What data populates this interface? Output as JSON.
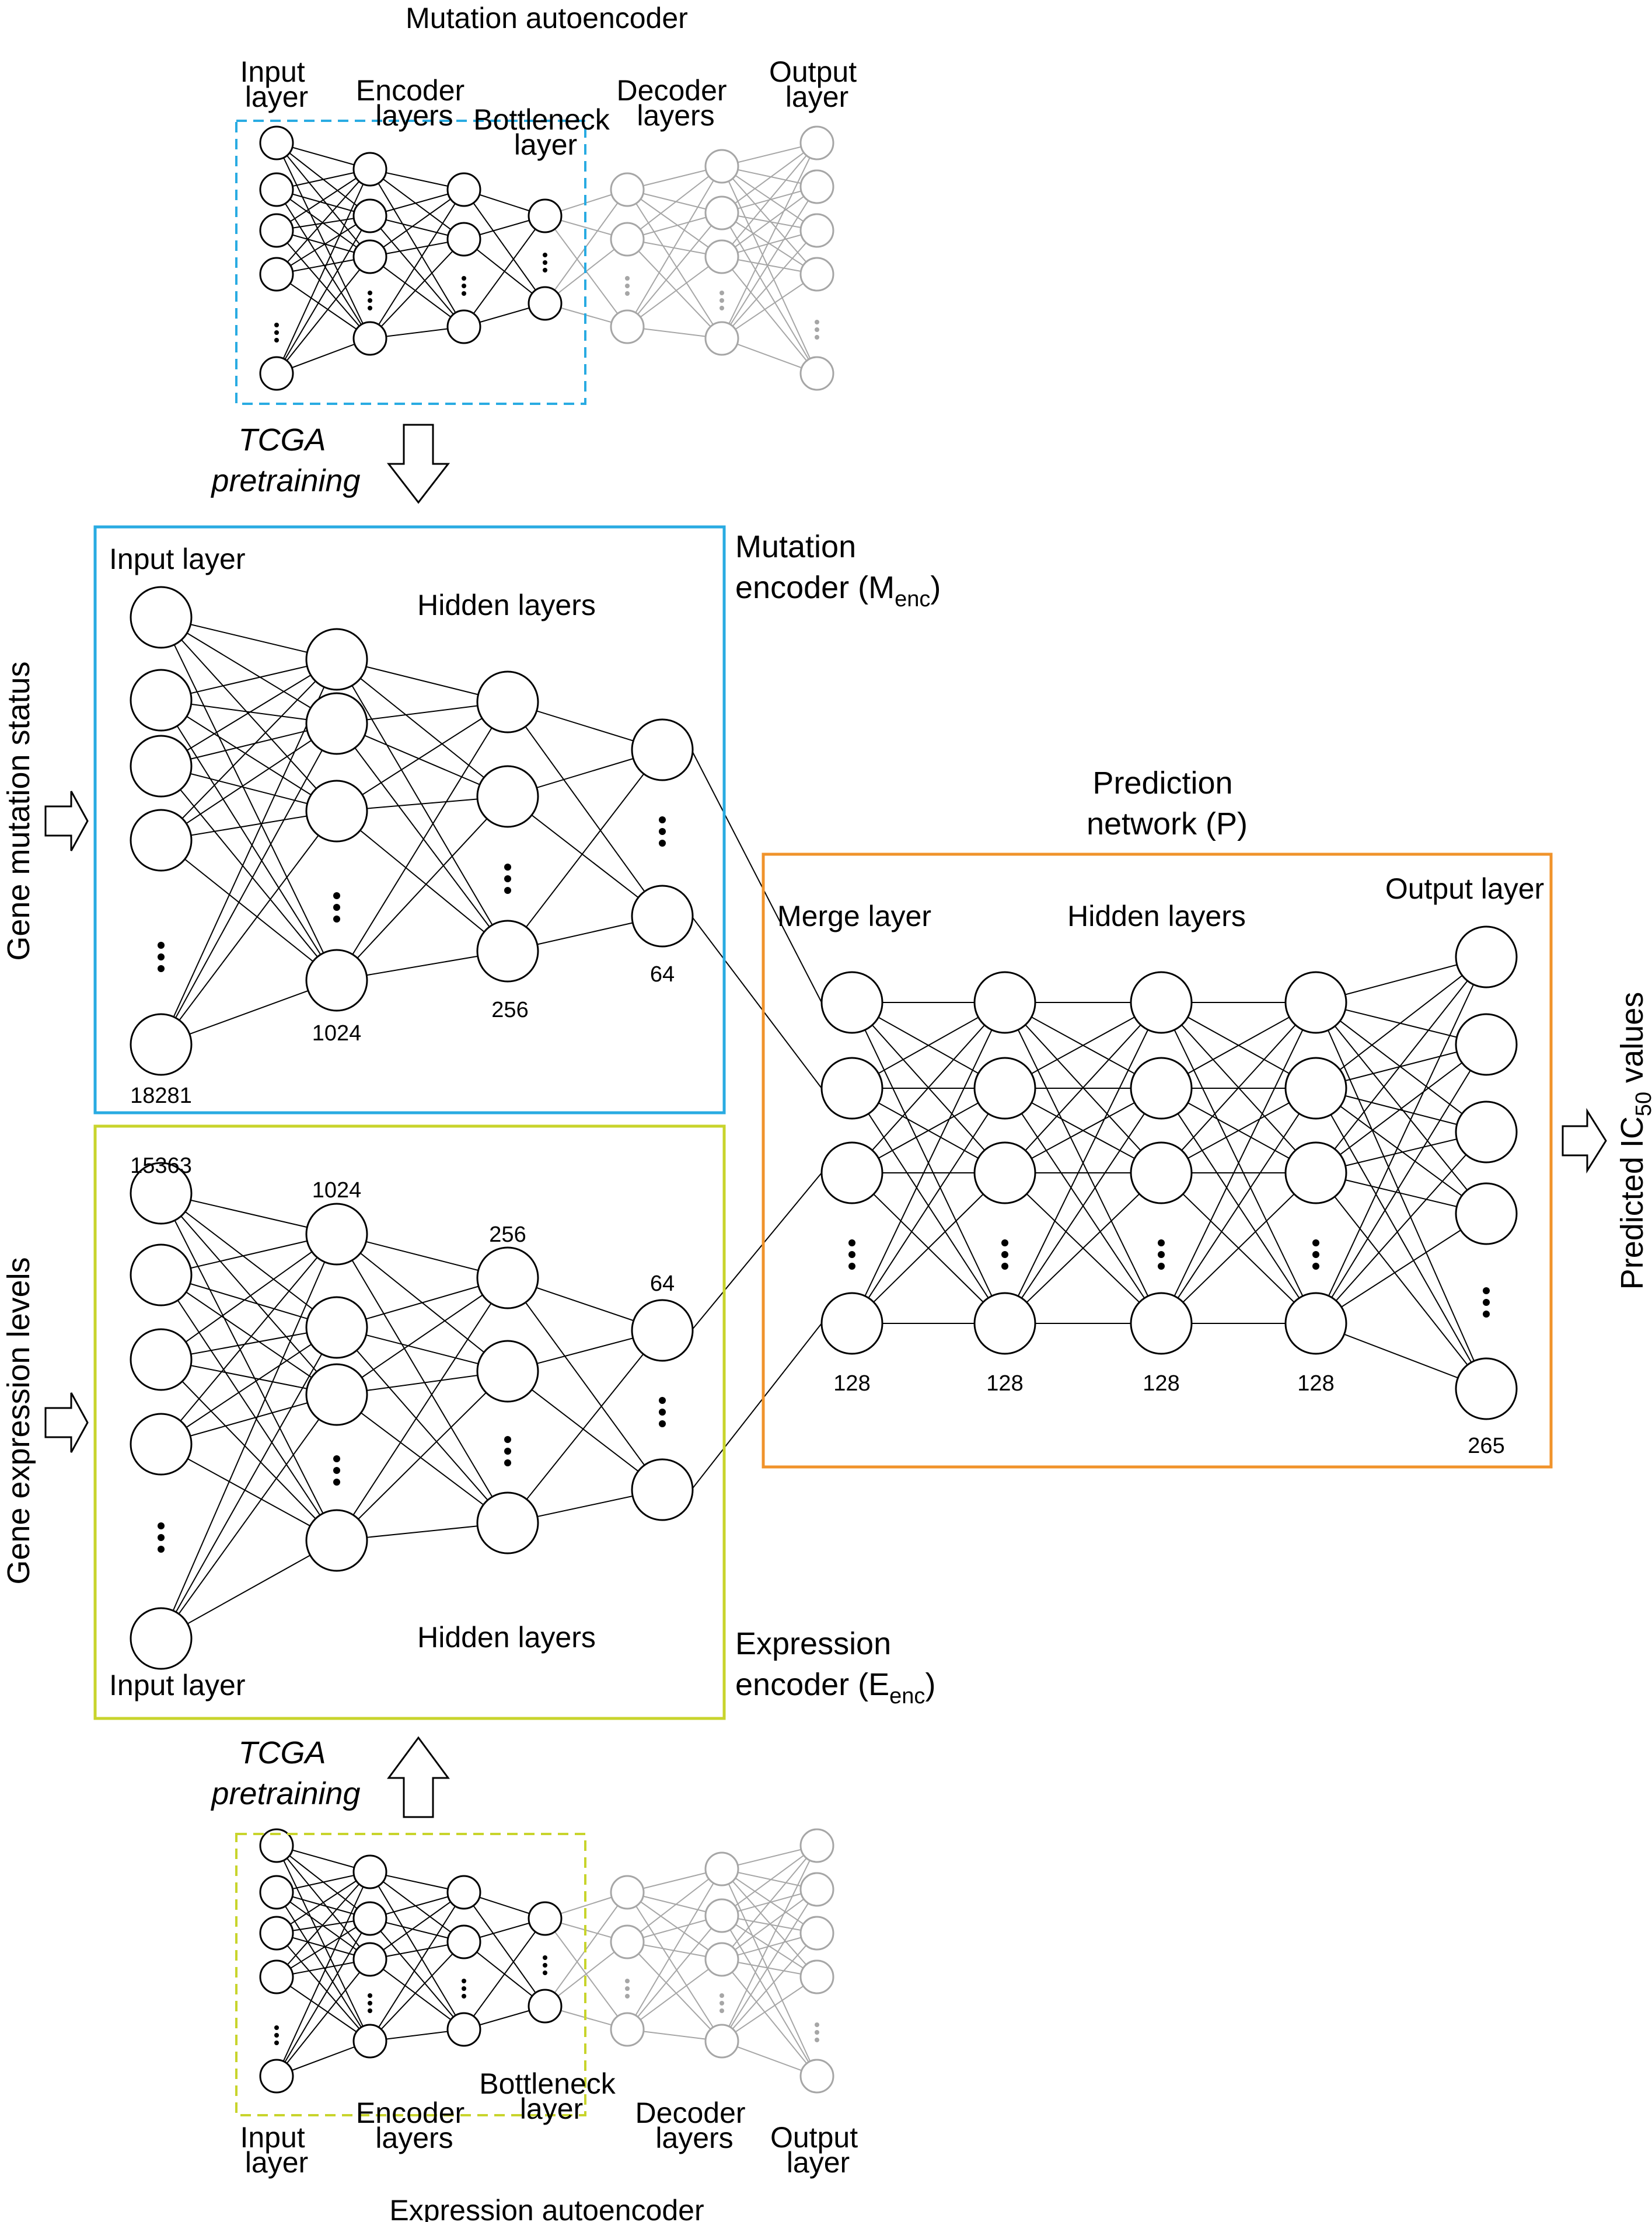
{
  "mutation_autoencoder": {
    "title": "Mutation autoencoder",
    "input_layer": [
      "Input",
      "layer"
    ],
    "encoder_layers": [
      "Encoder",
      "layers"
    ],
    "bottleneck_layer": [
      "Bottleneck",
      "layer"
    ],
    "decoder_layers": [
      "Decoder",
      "layers"
    ],
    "output_layer": [
      "Output",
      "layer"
    ]
  },
  "expression_autoencoder": {
    "title": "Expression autoencoder",
    "input_layer": [
      "Input",
      "layer"
    ],
    "encoder_layers": [
      "Encoder",
      "layers"
    ],
    "bottleneck_layer": [
      "Bottleneck",
      "layer"
    ],
    "decoder_layers": [
      "Decoder",
      "layers"
    ],
    "output_layer": [
      "Output",
      "layer"
    ]
  },
  "pretraining": {
    "top": [
      "TCGA",
      "pretraining"
    ],
    "bottom": [
      "TCGA",
      "pretraining"
    ]
  },
  "mutation_encoder": {
    "title_line1": "Mutation",
    "title_line2": "encoder (M",
    "title_sub": "enc",
    "title_close": ")",
    "input_label": "Input layer",
    "hidden_label": "Hidden layers",
    "sizes": [
      "18281",
      "1024",
      "256",
      "64"
    ]
  },
  "expression_encoder": {
    "title_line1": "Expression",
    "title_line2": "encoder (E",
    "title_sub": "enc",
    "title_close": ")",
    "input_label": "Input layer",
    "hidden_label": "Hidden layers",
    "sizes": [
      "15363",
      "1024",
      "256",
      "64"
    ]
  },
  "prediction_network": {
    "title_line1": "Prediction",
    "title_line2": "network (P)",
    "merge_label": "Merge layer",
    "hidden_label": "Hidden layers",
    "output_label": "Output layer",
    "sizes": [
      "128",
      "128",
      "128",
      "128",
      "265"
    ]
  },
  "side_labels": {
    "mutation_input": "Gene mutation status",
    "expression_input": "Gene expression levels",
    "output_prefix": "Predicted IC",
    "output_sub": "50",
    "output_suffix": " values"
  },
  "colors": {
    "mutation_encoder_border": "#29abe2",
    "expression_encoder_border": "#c8d42c",
    "prediction_border": "#f0932b",
    "decoder_gray": "#a6a6a6",
    "ink": "#000000"
  }
}
